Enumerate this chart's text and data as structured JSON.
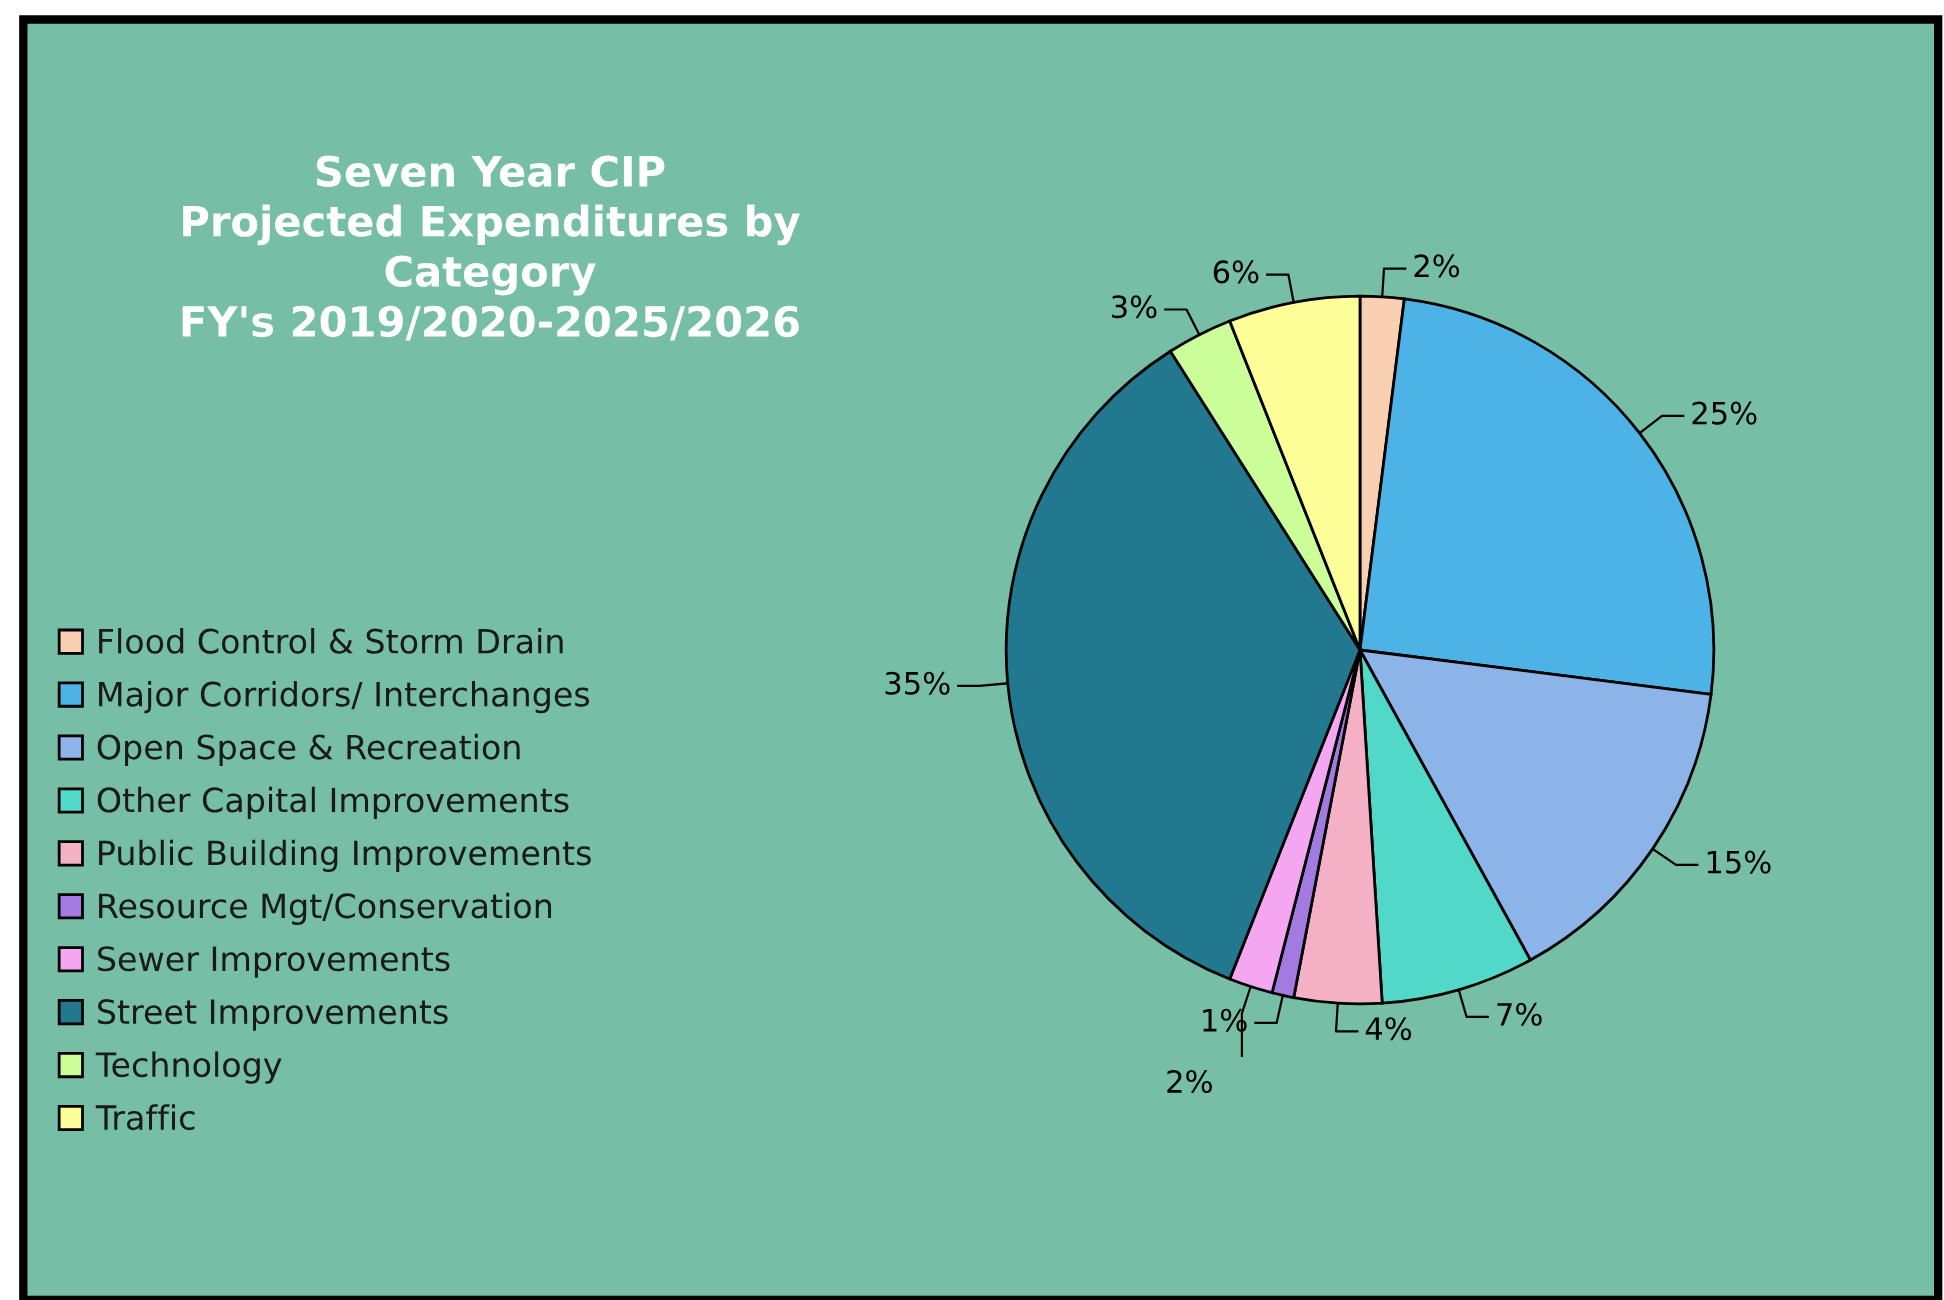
{
  "chart_data": {
    "type": "pie",
    "title": "Seven Year CIP\nProjected Expenditures by\nCategory\nFY's 2019/2020-2025/2026",
    "categories": [
      "Flood Control & Storm Drain",
      "Major Corridors/ Interchanges",
      "Open Space & Recreation",
      "Other Capital Improvements",
      "Public Building Improvements",
      "Resource Mgt/Conservation",
      "Sewer Improvements",
      "Street Improvements",
      "Technology",
      "Traffic"
    ],
    "values": [
      2,
      25,
      15,
      7,
      4,
      1,
      2,
      35,
      3,
      6
    ],
    "colors": [
      "#f8cfb0",
      "#4db3e6",
      "#8cb4e8",
      "#52d8c8",
      "#f4b0c4",
      "#a37ae0",
      "#f4a6f0",
      "#21788f",
      "#ccff99",
      "#ffff99"
    ],
    "value_labels": [
      "2%",
      "25%",
      "15%",
      "7%",
      "4%",
      "1%",
      "2%",
      "35%",
      "3%",
      "6%"
    ],
    "legend": "left"
  }
}
